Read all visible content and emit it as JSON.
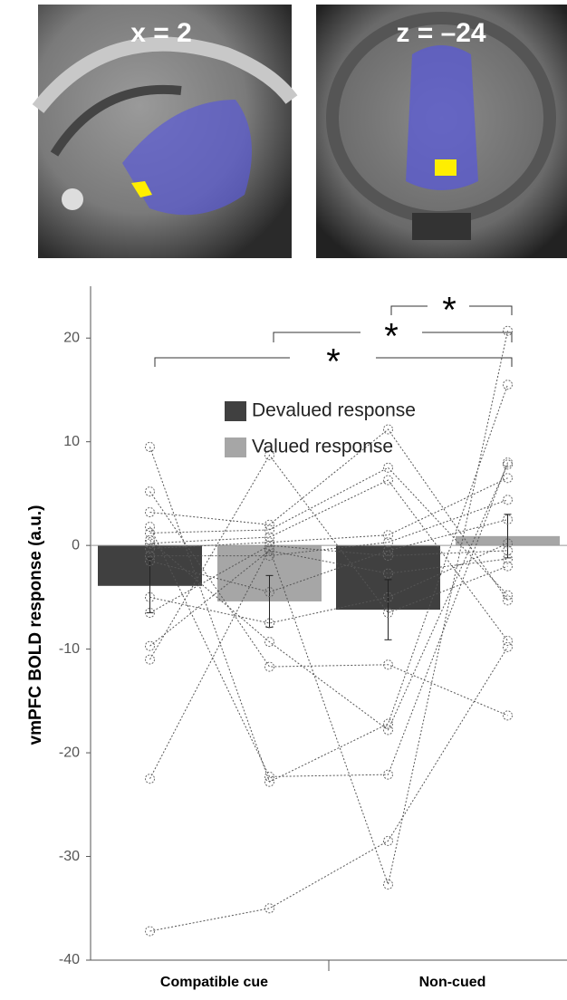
{
  "images": [
    {
      "label": "x = 2"
    },
    {
      "label": "z = –24"
    }
  ],
  "chart_data": {
    "type": "bar",
    "y_label": "vmPFC BOLD response (a.u.)",
    "categories": [
      "Compatible cue",
      "Non-cued"
    ],
    "series": [
      {
        "name": "Devalued response",
        "color": "#404040",
        "values": [
          -3.9,
          -6.2
        ],
        "errors": [
          2.6,
          2.9
        ]
      },
      {
        "name": "Valued response",
        "color": "#a6a6a6",
        "values": [
          -5.4,
          0.9
        ],
        "errors": [
          2.5,
          2.1
        ]
      }
    ],
    "subjects": [
      [
        -37.2,
        -35,
        -28.5,
        -9.8
      ],
      [
        -22.5,
        -0.3,
        -32.7,
        20.7
      ],
      [
        9.5,
        -22.8,
        -17.2,
        15.5
      ],
      [
        5.2,
        -11.7,
        -11.5,
        -16.4
      ],
      [
        3.2,
        2,
        11.2,
        -5.3
      ],
      [
        1.8,
        -22.3,
        -22.1,
        8
      ],
      [
        1.2,
        1.5,
        7.5,
        -4.8
      ],
      [
        0.5,
        -9.3,
        -17.8,
        7.8
      ],
      [
        0.2,
        0.8,
        6.3,
        -9.2
      ],
      [
        -0.3,
        0.3,
        1,
        6.5
      ],
      [
        -1,
        -1,
        0.3,
        4.4
      ],
      [
        -1.5,
        -4.5,
        -0.5,
        2.5
      ],
      [
        -5,
        -7.5,
        -5,
        0.2
      ],
      [
        -6.5,
        0,
        -1,
        -0.5
      ],
      [
        -9.7,
        -0.5,
        -2.7,
        -1.3
      ],
      [
        -11,
        8.7,
        -6.5,
        -2
      ]
    ],
    "annotations": [
      "*",
      "*",
      "*"
    ],
    "ylim": [
      -40,
      25
    ],
    "yticks": [
      -40,
      -30,
      -20,
      -10,
      0,
      10,
      20
    ]
  }
}
